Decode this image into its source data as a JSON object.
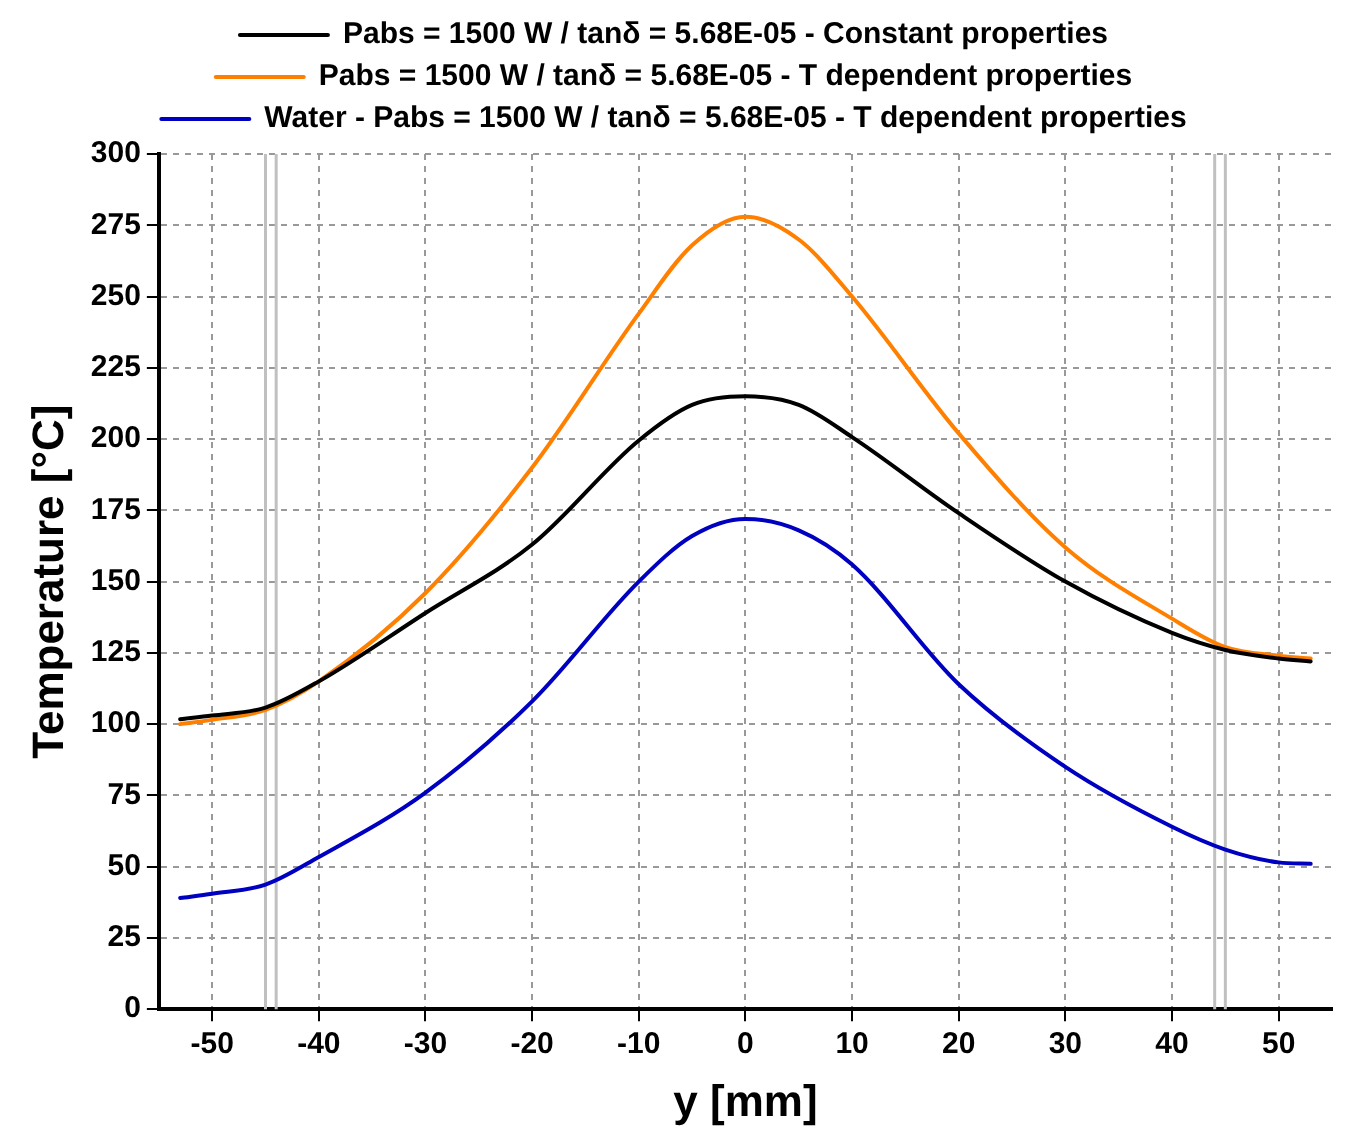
{
  "chart_data": {
    "type": "line",
    "xlabel": "y [mm]",
    "ylabel": "Temperature [°C]",
    "x": [
      -53,
      -50,
      -45,
      -40,
      -30,
      -20,
      -10,
      -5,
      0,
      5,
      10,
      20,
      30,
      40,
      45,
      50,
      53
    ],
    "xlim": [
      -55,
      55
    ],
    "xticks": [
      -50,
      -40,
      -30,
      -20,
      -10,
      0,
      10,
      20,
      30,
      40,
      50
    ],
    "ylim": [
      0,
      300
    ],
    "yticks": [
      0,
      25,
      50,
      75,
      100,
      125,
      150,
      175,
      200,
      225,
      250,
      275,
      300
    ],
    "grid": true,
    "legend": "top",
    "marker": "none",
    "line_style": "solid",
    "series": [
      {
        "name": "Pabs = 1500 W / tanδ = 5.68E-05 - Constant properties",
        "color": "#000000",
        "values": [
          101.7,
          103,
          105.8,
          115,
          139,
          163,
          199.5,
          212,
          215,
          212,
          200.7,
          174,
          150,
          132,
          126,
          123,
          122
        ]
      },
      {
        "name": "Pabs = 1500 W / tanδ = 5.68E-05 - T dependent properties",
        "color": "#ff8000",
        "values": [
          100,
          101.5,
          105,
          115,
          146,
          190,
          244,
          268,
          278,
          270,
          250,
          202,
          162,
          137,
          127,
          124,
          123
        ]
      },
      {
        "name": "Water - Pabs = 1500 W / tanδ = 5.68E-05 - T dependent properties",
        "color": "#0000c0",
        "values": [
          39,
          40.5,
          43.7,
          53.4,
          76,
          108,
          150,
          166,
          172,
          168,
          156,
          114,
          85,
          64,
          56,
          51.5,
          51
        ]
      }
    ],
    "ref_lines": [
      {
        "axis": "x",
        "value": -45,
        "color": "#c0c0c0"
      },
      {
        "axis": "x",
        "value": -44,
        "color": "#c0c0c0"
      },
      {
        "axis": "x",
        "value": 44,
        "color": "#c0c0c0"
      },
      {
        "axis": "x",
        "value": 45,
        "color": "#c0c0c0"
      }
    ]
  }
}
